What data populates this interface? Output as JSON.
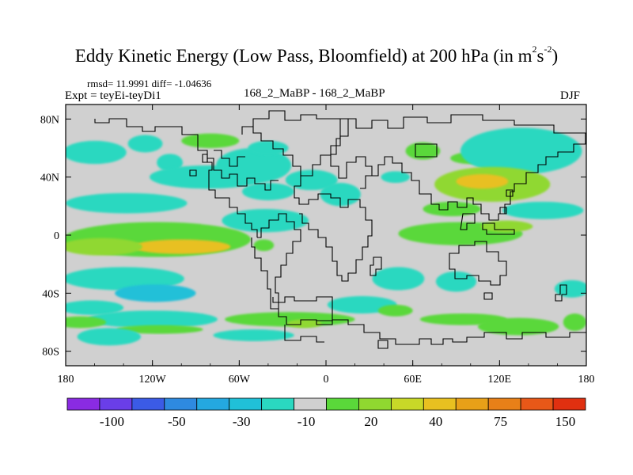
{
  "chart_data": {
    "type": "heatmap",
    "title_main": "Eddy Kinetic Energy (Low Pass, Bloomfield) at 200 hPa (in m",
    "title_sup1": "2",
    "title_mid": "s",
    "title_sup2": "-2",
    "title_end": ")",
    "stats": "rmsd= 11.9991 diff= -1.04636",
    "expt": "Expt = teyEi-teyDi1",
    "center_label": "168_2_MaBP - 168_2_MaBP",
    "season": "DJF",
    "x_range": [
      -180,
      180
    ],
    "y_range": [
      -90,
      90
    ],
    "x_ticks": [
      {
        "value": -180,
        "label": "180"
      },
      {
        "value": -120,
        "label": "120W"
      },
      {
        "value": -60,
        "label": "60W"
      },
      {
        "value": 0,
        "label": "0"
      },
      {
        "value": 60,
        "label": "60E"
      },
      {
        "value": 120,
        "label": "120E"
      },
      {
        "value": 180,
        "label": "180"
      }
    ],
    "y_ticks": [
      {
        "value": 80,
        "label": "80N"
      },
      {
        "value": 40,
        "label": "40N"
      },
      {
        "value": 0,
        "label": "0"
      },
      {
        "value": -40,
        "label": "40S"
      },
      {
        "value": -80,
        "label": "80S"
      }
    ],
    "background_color": "#d0d0d0",
    "colorbar": {
      "colors": [
        "#8a2be2",
        "#6a3ee8",
        "#3b5be6",
        "#2e8ae0",
        "#24a8e0",
        "#20c0d8",
        "#2ad8c0",
        "#d0d0d0",
        "#5ad83a",
        "#90d830",
        "#c8d828",
        "#e8c020",
        "#e8a018",
        "#e88018",
        "#e85818",
        "#e03010"
      ],
      "labels": [
        {
          "index": 2,
          "text": "-100"
        },
        {
          "index": 4,
          "text": "-50"
        },
        {
          "index": 6,
          "text": "-30"
        },
        {
          "index": 8,
          "text": "-10"
        },
        {
          "index": 10,
          "text": "20"
        },
        {
          "index": 12,
          "text": "40"
        },
        {
          "index": 14,
          "text": "75"
        },
        {
          "index": 16,
          "text": "150"
        }
      ]
    },
    "anomaly_regions": [
      {
        "lon": -160,
        "lat": 57,
        "rlon": 22,
        "rlat": 8,
        "level": -1
      },
      {
        "lon": -125,
        "lat": 63,
        "rlon": 12,
        "rlat": 6,
        "level": -1
      },
      {
        "lon": -108,
        "lat": 50,
        "rlon": 9,
        "rlat": 6,
        "level": -1
      },
      {
        "lon": -80,
        "lat": 65,
        "rlon": 20,
        "rlat": 5,
        "level": 1
      },
      {
        "lon": -82,
        "lat": 40,
        "rlon": 40,
        "rlat": 8,
        "level": -1
      },
      {
        "lon": -138,
        "lat": 22,
        "rlon": 42,
        "rlat": 7,
        "level": -1
      },
      {
        "lon": -50,
        "lat": 48,
        "rlon": 26,
        "rlat": 12,
        "level": -1
      },
      {
        "lon": -40,
        "lat": 30,
        "rlon": 18,
        "rlat": 6,
        "level": -1
      },
      {
        "lon": -42,
        "lat": 10,
        "rlon": 30,
        "rlat": 8,
        "level": -1
      },
      {
        "lon": -10,
        "lat": 38,
        "rlon": 18,
        "rlat": 7,
        "level": -1
      },
      {
        "lon": -40,
        "lat": 60,
        "rlon": 14,
        "rlat": 5,
        "level": -1
      },
      {
        "lon": 10,
        "lat": 28,
        "rlon": 14,
        "rlat": 8,
        "level": -1
      },
      {
        "lon": 48,
        "lat": 40,
        "rlon": 10,
        "rlat": 4,
        "level": -1
      },
      {
        "lon": 67,
        "lat": 58,
        "rlon": 12,
        "rlat": 6,
        "level": 1
      },
      {
        "lon": 100,
        "lat": 53,
        "rlon": 14,
        "rlat": 4,
        "level": 1
      },
      {
        "lon": 135,
        "lat": 58,
        "rlon": 42,
        "rlat": 16,
        "level": -1
      },
      {
        "lon": 115,
        "lat": 35,
        "rlon": 40,
        "rlat": 12,
        "level": 2
      },
      {
        "lon": 108,
        "lat": 37,
        "rlon": 18,
        "rlat": 5,
        "level": 4
      },
      {
        "lon": 150,
        "lat": 17,
        "rlon": 28,
        "rlat": 6,
        "level": -1
      },
      {
        "lon": 87,
        "lat": 18,
        "rlon": 20,
        "rlat": 5,
        "level": 1
      },
      {
        "lon": 93,
        "lat": 1,
        "rlon": 43,
        "rlat": 8,
        "level": 1
      },
      {
        "lon": 125,
        "lat": 6,
        "rlon": 18,
        "rlat": 4,
        "level": 2
      },
      {
        "lon": -117,
        "lat": -3,
        "rlon": 65,
        "rlat": 12,
        "level": 1
      },
      {
        "lon": -100,
        "lat": -8,
        "rlon": 34,
        "rlat": 5,
        "level": 4
      },
      {
        "lon": -155,
        "lat": -8,
        "rlon": 28,
        "rlat": 6,
        "level": 2
      },
      {
        "lon": -43,
        "lat": -7,
        "rlon": 7,
        "rlat": 4,
        "level": 1
      },
      {
        "lon": -140,
        "lat": -30,
        "rlon": 42,
        "rlat": 8,
        "level": -1
      },
      {
        "lon": -118,
        "lat": -40,
        "rlon": 28,
        "rlat": 6,
        "level": -2
      },
      {
        "lon": -162,
        "lat": -50,
        "rlon": 22,
        "rlat": 5,
        "level": -1
      },
      {
        "lon": -120,
        "lat": -58,
        "rlon": 45,
        "rlat": 6,
        "level": -1
      },
      {
        "lon": -170,
        "lat": -60,
        "rlon": 18,
        "rlat": 4,
        "level": 1
      },
      {
        "lon": -115,
        "lat": -65,
        "rlon": 30,
        "rlat": 3,
        "level": 1
      },
      {
        "lon": 50,
        "lat": -30,
        "rlon": 18,
        "rlat": 8,
        "level": -1
      },
      {
        "lon": 25,
        "lat": -48,
        "rlon": 24,
        "rlat": 6,
        "level": -1
      },
      {
        "lon": 90,
        "lat": -32,
        "rlon": 14,
        "rlat": 7,
        "level": -1
      },
      {
        "lon": 48,
        "lat": -52,
        "rlon": 12,
        "rlat": 4,
        "level": 1
      },
      {
        "lon": -25,
        "lat": -58,
        "rlon": 45,
        "rlat": 5,
        "level": 1
      },
      {
        "lon": -15,
        "lat": -61,
        "rlon": 12,
        "rlat": 3,
        "level": 2
      },
      {
        "lon": -150,
        "lat": -70,
        "rlon": 22,
        "rlat": 6,
        "level": -1
      },
      {
        "lon": -50,
        "lat": -69,
        "rlon": 28,
        "rlat": 4,
        "level": -1
      },
      {
        "lon": 95,
        "lat": -58,
        "rlon": 30,
        "rlat": 4,
        "level": 1
      },
      {
        "lon": 133,
        "lat": -63,
        "rlon": 28,
        "rlat": 6,
        "level": 1
      },
      {
        "lon": 172,
        "lat": -60,
        "rlon": 8,
        "rlat": 6,
        "level": 1
      },
      {
        "lon": 170,
        "lat": -37,
        "rlon": 12,
        "rlat": 6,
        "level": -1
      }
    ]
  }
}
